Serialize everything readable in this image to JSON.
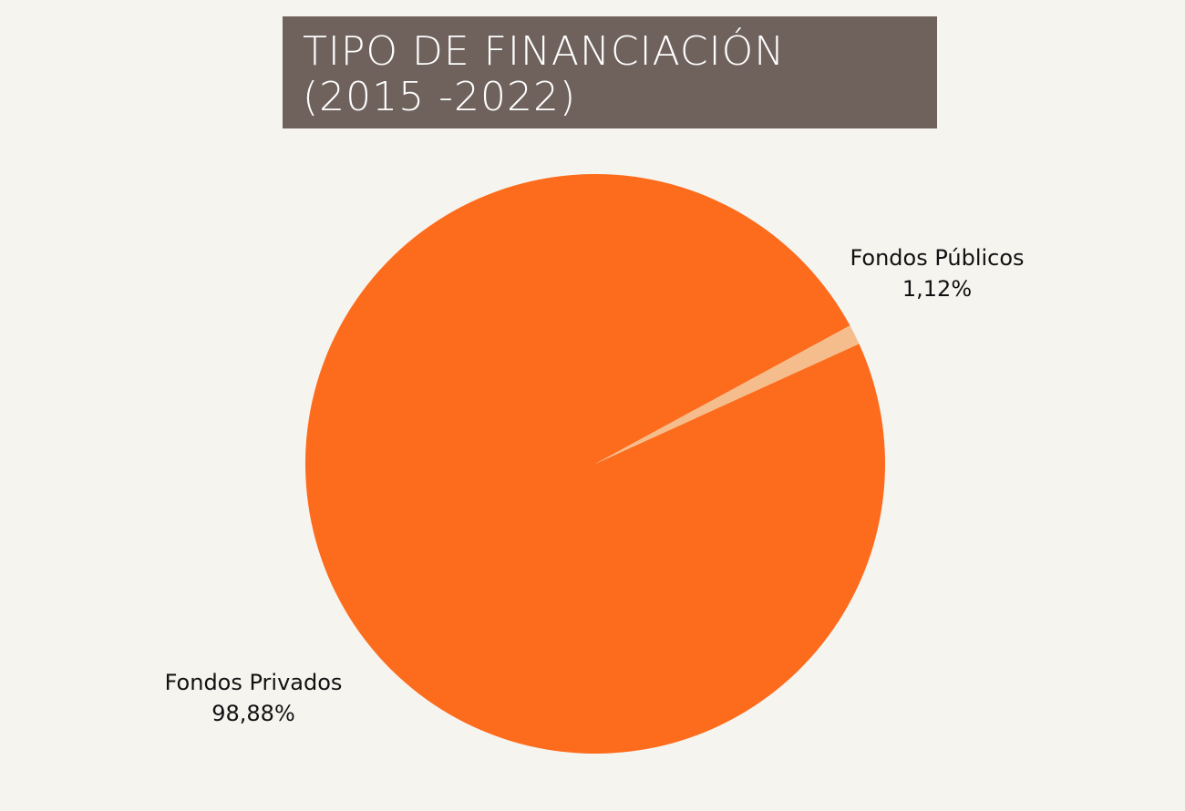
{
  "chart_data": {
    "type": "pie",
    "title_lines": [
      "TIPO DE FINANCIACIÓN",
      "(2015 -2022)"
    ],
    "slices": [
      {
        "name": "Fondos Públicos",
        "value": 1.12,
        "label": "1,12%",
        "color": "#f6bd8c"
      },
      {
        "name": "Fondos Privados",
        "value": 98.88,
        "label": "98,88%",
        "color": "#fd6b1c"
      }
    ]
  },
  "colors": {
    "background": "#f6f4ef",
    "title_background": "#6f625d",
    "title_text": "#ffffff"
  }
}
